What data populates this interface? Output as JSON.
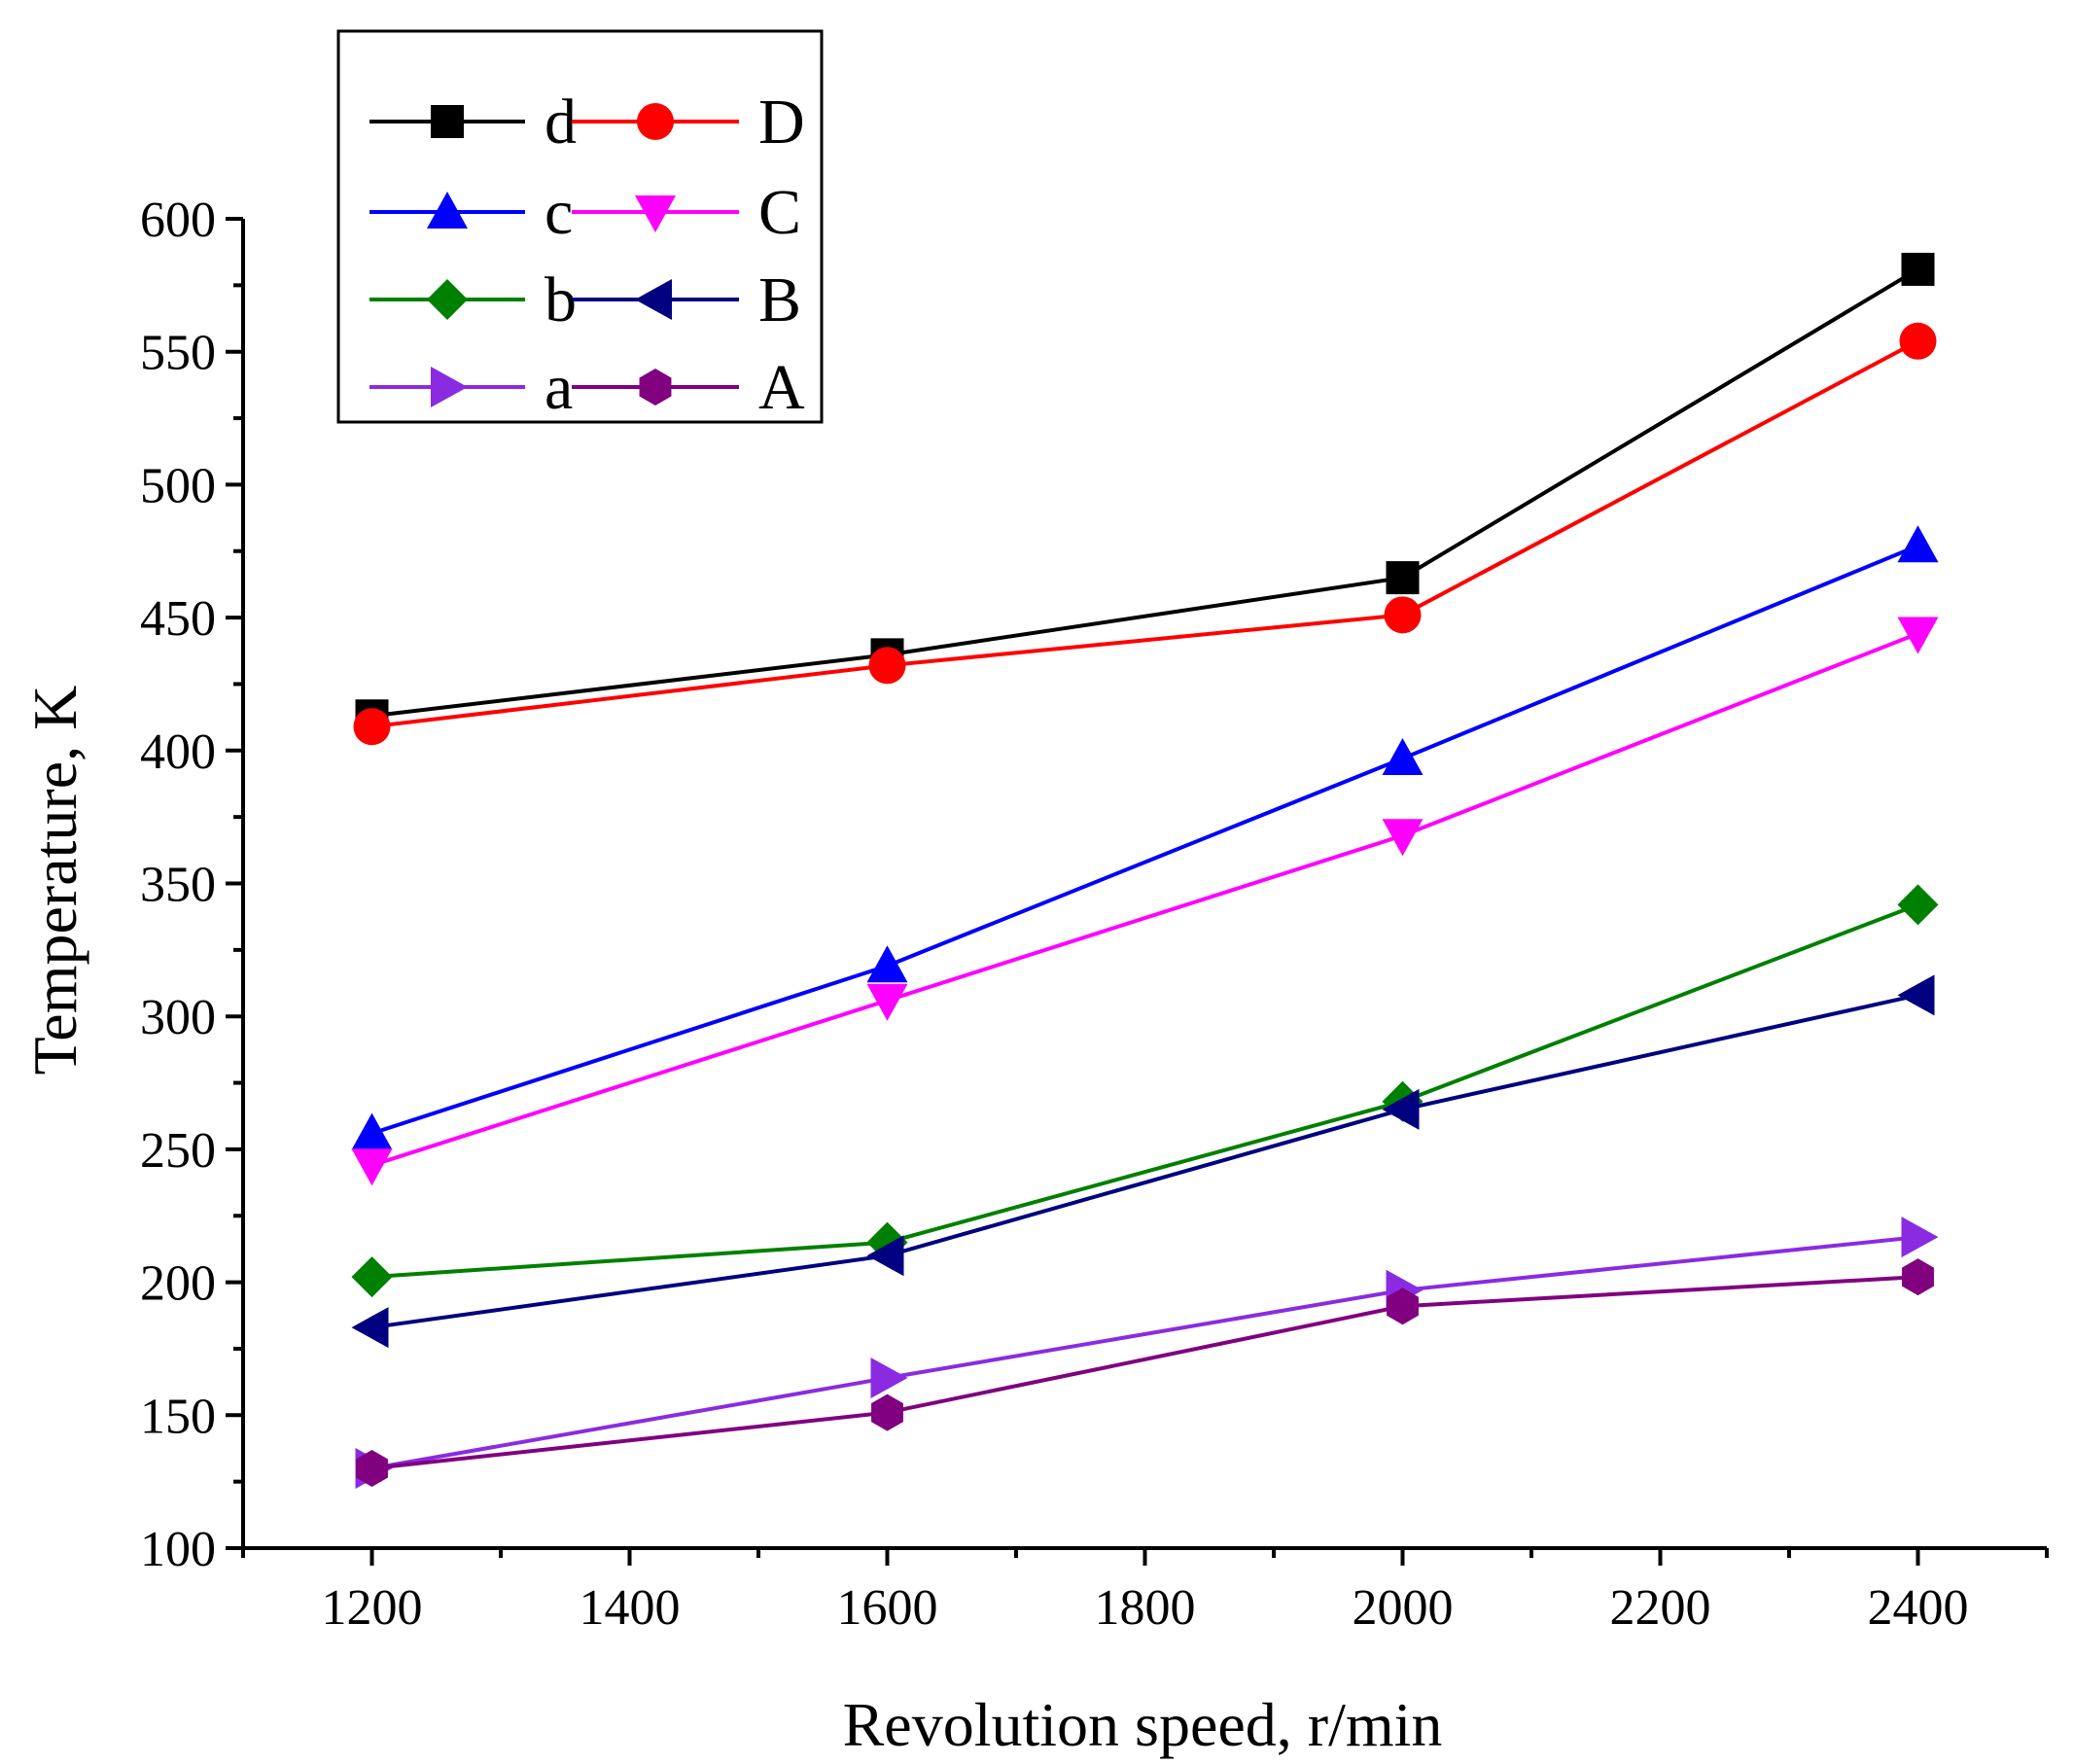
{
  "chart_data": {
    "type": "line",
    "title": "",
    "xlabel": "Revolution speed, r/min",
    "ylabel": "Temperature, K",
    "x": [
      1200,
      1600,
      2000,
      2400
    ],
    "xlim": [
      1100,
      2500
    ],
    "ylim": [
      100,
      600
    ],
    "xticks": [
      1200,
      1400,
      1600,
      1800,
      2000,
      2200,
      2400
    ],
    "yticks": [
      100,
      150,
      200,
      250,
      300,
      350,
      400,
      450,
      500,
      550,
      600
    ],
    "grid": false,
    "legend_position": "top-left",
    "series": [
      {
        "name": "d",
        "color": "#000000",
        "marker": "square",
        "values": [
          413,
          436,
          465,
          581
        ]
      },
      {
        "name": "D",
        "color": "#ff0000",
        "marker": "circle",
        "values": [
          409,
          432,
          451,
          554
        ]
      },
      {
        "name": "c",
        "color": "#0000ff",
        "marker": "triangle-up",
        "values": [
          256,
          319,
          397,
          477
        ]
      },
      {
        "name": "C",
        "color": "#ff00ff",
        "marker": "triangle-down",
        "values": [
          244,
          306,
          368,
          444
        ]
      },
      {
        "name": "b",
        "color": "#008000",
        "marker": "diamond",
        "values": [
          202,
          215,
          268,
          342
        ]
      },
      {
        "name": "B",
        "color": "#000080",
        "marker": "triangle-left",
        "values": [
          183,
          210,
          265,
          308
        ]
      },
      {
        "name": "a",
        "color": "#8a2be2",
        "marker": "triangle-right",
        "values": [
          130,
          164,
          197,
          217
        ]
      },
      {
        "name": "A",
        "color": "#800080",
        "marker": "hexagon",
        "values": [
          130,
          151,
          191,
          202
        ]
      }
    ]
  }
}
